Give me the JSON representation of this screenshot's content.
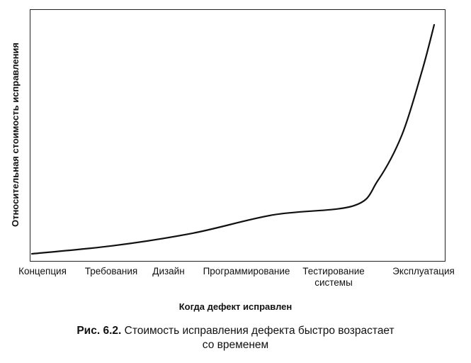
{
  "chart_data": {
    "type": "line",
    "title": "",
    "xlabel": "Когда дефект исправлен",
    "ylabel": "Относительная стоимость исправления",
    "categories": [
      "Концепция",
      "Требования",
      "Дизайн",
      "Программирование",
      "Тестирование\nсистемы",
      "Эксплуатация"
    ],
    "series": [
      {
        "x": [
          0,
          1,
          2,
          3,
          4,
          4.3,
          4.6,
          4.85,
          5
        ],
        "y": [
          0,
          0.035,
          0.09,
          0.17,
          0.21,
          0.32,
          0.52,
          0.8,
          1.0
        ]
      }
    ],
    "ylim": [
      0,
      1
    ],
    "xlim": [
      0,
      5
    ],
    "grid": false,
    "y_tick_labels_shown": false
  },
  "caption": {
    "prefix": "Рис. 6.2.",
    "line1": " Стоимость исправления дефекта быстро возрастает",
    "line2": "со временем"
  }
}
